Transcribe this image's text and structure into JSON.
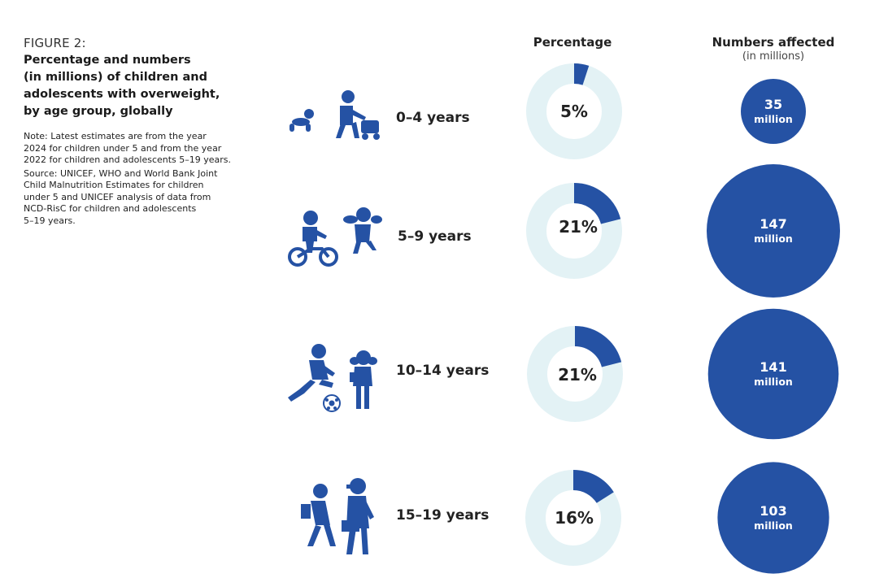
{
  "figure": {
    "label": "FIGURE 2:",
    "title_lines": [
      "Percentage and numbers",
      "(in millions) of children and",
      "adolescents with overweight,",
      "by age group, globally"
    ],
    "note_lines": [
      "Note: Latest estimates are from the year",
      "2024 for children under 5 and from the year",
      "2022 for children and adolescents 5–19 years."
    ],
    "source_lines": [
      "Source: UNICEF, WHO and World Bank Joint",
      "Child Malnutrition Estimates for children",
      "under 5 and UNICEF analysis of data from",
      "NCD-RisC for children and adolescents",
      "5–19 years."
    ]
  },
  "columns": {
    "percentage": "Percentage",
    "numbers": "Numbers affected",
    "numbers_sub": "(in millions)"
  },
  "colors": {
    "accent": "#2552a4",
    "track": "#e3f2f5",
    "text": "#222222"
  },
  "chart_data": {
    "type": "donut-and-bubble",
    "categories": [
      "0–4 years",
      "5–9 years",
      "10–14 years",
      "15–19 years"
    ],
    "icons": [
      "crawling-toddler-icon",
      "bike-child-icon",
      "football-child-icon",
      "walking-teens-icon"
    ],
    "series": [
      {
        "name": "Percentage",
        "values": [
          5,
          21,
          21,
          16
        ],
        "labels": [
          "5%",
          "21%",
          "21%",
          "16%"
        ]
      },
      {
        "name": "Numbers affected",
        "values": [
          35,
          147,
          141,
          103
        ],
        "unit": "million"
      }
    ]
  }
}
